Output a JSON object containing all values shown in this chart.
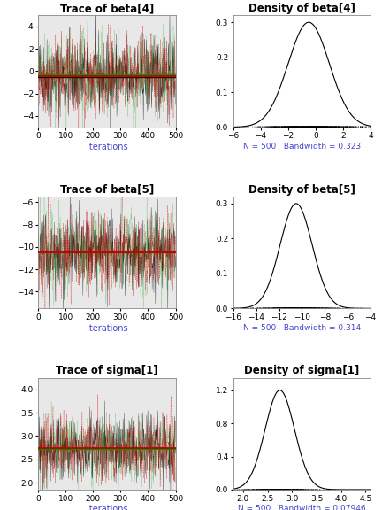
{
  "panels": [
    {
      "trace_title": "Trace of beta[4]",
      "density_title": "Density of beta[4]",
      "trace_mean": -0.5,
      "trace_std": 1.8,
      "trace_ylim": [
        -5,
        5
      ],
      "trace_yticks": [
        -4,
        -2,
        0,
        2,
        4
      ],
      "density_xlim": [
        -6,
        4
      ],
      "density_xticks": [
        -6,
        -4,
        -2,
        0,
        2,
        4
      ],
      "density_ylim": [
        0,
        0.32
      ],
      "density_yticks": [
        0.0,
        0.1,
        0.2,
        0.3
      ],
      "density_peak": 0.3,
      "density_mean": -0.5,
      "density_std": 1.5,
      "bandwidth_label": "N = 500   Bandwidth = 0.323"
    },
    {
      "trace_title": "Trace of beta[5]",
      "density_title": "Density of beta[5]",
      "trace_mean": -10.5,
      "trace_std": 1.8,
      "trace_ylim": [
        -15.5,
        -5.5
      ],
      "trace_yticks": [
        -14,
        -12,
        -10,
        -8,
        -6
      ],
      "density_xlim": [
        -16,
        -4
      ],
      "density_xticks": [
        -16,
        -14,
        -12,
        -10,
        -8,
        -6,
        -4
      ],
      "density_ylim": [
        0,
        0.32
      ],
      "density_yticks": [
        0.0,
        0.1,
        0.2,
        0.3
      ],
      "density_peak": 0.3,
      "density_mean": -10.5,
      "density_std": 1.4,
      "bandwidth_label": "N = 500   Bandwidth = 0.314"
    },
    {
      "trace_title": "Trace of sigma[1]",
      "density_title": "Density of sigma[1]",
      "trace_mean": 2.75,
      "trace_std": 0.35,
      "trace_ylim": [
        1.85,
        4.25
      ],
      "trace_yticks": [
        2.0,
        2.5,
        3.0,
        3.5,
        4.0
      ],
      "density_xlim": [
        1.8,
        4.6
      ],
      "density_xticks": [
        2.0,
        2.5,
        3.0,
        3.5,
        4.0,
        4.5
      ],
      "density_ylim": [
        0,
        1.35
      ],
      "density_yticks": [
        0.0,
        0.4,
        0.8,
        1.2
      ],
      "density_peak": 1.2,
      "density_mean": 2.75,
      "density_std": 0.3,
      "bandwidth_label": "N = 500   Bandwidth = 0.07946"
    }
  ],
  "n_iter": 500,
  "n_chains": 3,
  "chain_colors": [
    "black",
    "#cc0000",
    "#009900"
  ],
  "chain_alphas": [
    0.85,
    0.75,
    0.75
  ],
  "trace_bg": "#e8e8e8",
  "density_bg": "white",
  "title_fontsize": 8.5,
  "label_fontsize": 7,
  "tick_fontsize": 6.5,
  "xlabel": "Iterations",
  "xlabel_color": "#4444cc",
  "bandwidth_color": "#4444cc"
}
